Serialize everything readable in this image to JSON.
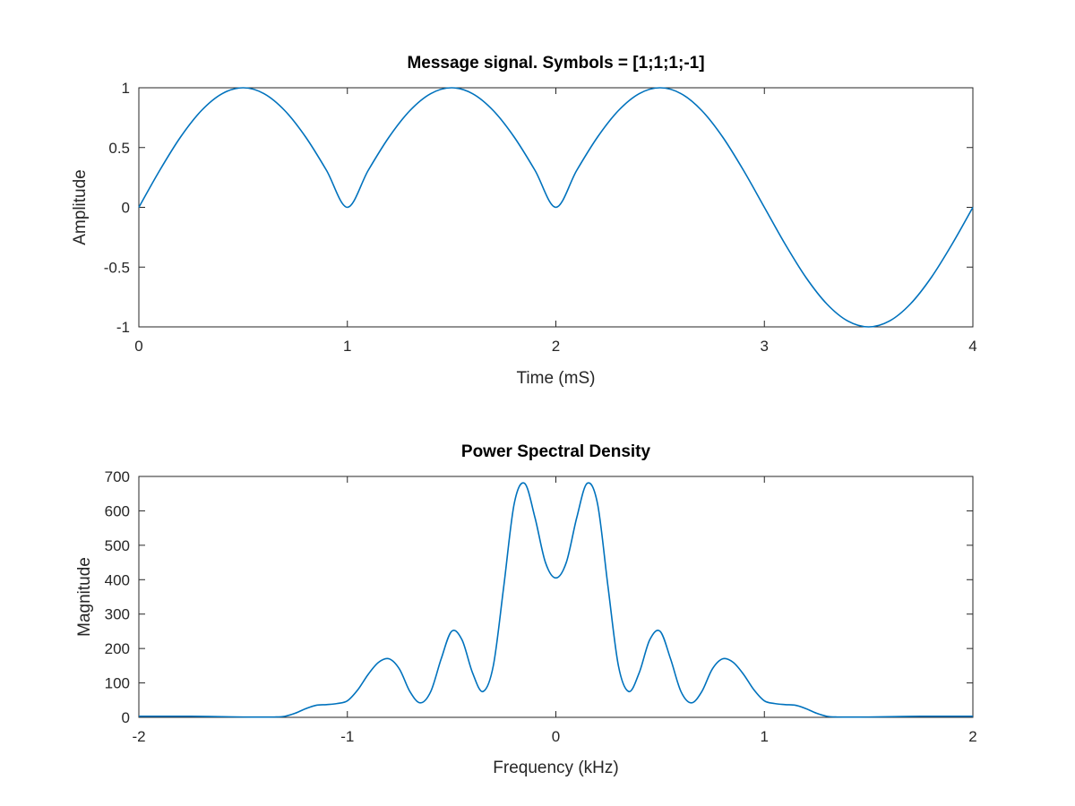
{
  "chart_data": [
    {
      "type": "line",
      "title": "Message signal. Symbols = [1;1;1;-1]",
      "xlabel": "Time (mS)",
      "ylabel": "Amplitude",
      "xlim": [
        0,
        4
      ],
      "ylim": [
        -1,
        1
      ],
      "xticks": [
        0,
        1,
        2,
        3,
        4
      ],
      "xtick_labels": [
        "0",
        "1",
        "2",
        "3",
        "4"
      ],
      "yticks": [
        -1,
        -0.5,
        0,
        0.5,
        1
      ],
      "ytick_labels": [
        "-1",
        "-0.5",
        "0",
        "0.5",
        "1"
      ],
      "grid": false,
      "series_color": "#0072BD",
      "series": [
        {
          "x": [
            0,
            0.1,
            0.2,
            0.3,
            0.4,
            0.5,
            0.6,
            0.7,
            0.8,
            0.9,
            1.0,
            1.1,
            1.2,
            1.3,
            1.4,
            1.5,
            1.6,
            1.7,
            1.8,
            1.9,
            2.0,
            2.1,
            2.2,
            2.3,
            2.4,
            2.5,
            2.6,
            2.7,
            2.8,
            2.9,
            3.0,
            3.1,
            3.2,
            3.3,
            3.4,
            3.5,
            3.6,
            3.7,
            3.8,
            3.9,
            4.0
          ],
          "values": [
            0,
            0.309,
            0.588,
            0.809,
            0.951,
            1.0,
            0.951,
            0.809,
            0.588,
            0.309,
            0,
            0.309,
            0.588,
            0.809,
            0.951,
            1.0,
            0.951,
            0.809,
            0.588,
            0.309,
            0,
            0.309,
            0.588,
            0.809,
            0.951,
            1.0,
            0.951,
            0.809,
            0.588,
            0.309,
            0,
            -0.309,
            -0.588,
            -0.809,
            -0.951,
            -1.0,
            -0.951,
            -0.809,
            -0.588,
            -0.309,
            0
          ]
        }
      ]
    },
    {
      "type": "line",
      "title": "Power Spectral Density",
      "xlabel": "Frequency (kHz)",
      "ylabel": "Magnitude",
      "xlim": [
        -2,
        2
      ],
      "ylim": [
        0,
        700
      ],
      "xticks": [
        -2,
        -1,
        0,
        1,
        2
      ],
      "xtick_labels": [
        "-2",
        "-1",
        "0",
        "1",
        "2"
      ],
      "yticks": [
        0,
        100,
        200,
        300,
        400,
        500,
        600,
        700
      ],
      "ytick_labels": [
        "0",
        "100",
        "200",
        "300",
        "400",
        "500",
        "600",
        "700"
      ],
      "grid": false,
      "series_color": "#0072BD",
      "series": [
        {
          "x": [
            -2.0,
            -1.75,
            -1.5,
            -1.35,
            -1.3,
            -1.25,
            -1.2,
            -1.15,
            -1.1,
            -1.05,
            -1.0,
            -0.95,
            -0.9,
            -0.85,
            -0.8,
            -0.75,
            -0.7,
            -0.65,
            -0.6,
            -0.55,
            -0.5,
            -0.45,
            -0.4,
            -0.35,
            -0.3,
            -0.25,
            -0.2,
            -0.15,
            -0.1,
            -0.05,
            0.0,
            0.05,
            0.1,
            0.15,
            0.2,
            0.25,
            0.3,
            0.35,
            0.4,
            0.45,
            0.5,
            0.55,
            0.6,
            0.65,
            0.7,
            0.75,
            0.8,
            0.85,
            0.9,
            0.95,
            1.0,
            1.05,
            1.1,
            1.15,
            1.2,
            1.25,
            1.3,
            1.35,
            1.5,
            1.75,
            2.0
          ],
          "values": [
            3,
            3,
            1,
            1,
            3,
            12,
            25,
            35,
            37,
            40,
            48,
            80,
            125,
            160,
            170,
            140,
            75,
            42,
            75,
            170,
            250,
            225,
            130,
            75,
            150,
            380,
            620,
            680,
            580,
            450,
            405,
            450,
            580,
            680,
            620,
            380,
            150,
            75,
            130,
            225,
            250,
            170,
            75,
            42,
            75,
            140,
            170,
            160,
            125,
            80,
            48,
            40,
            37,
            35,
            25,
            12,
            3,
            1,
            1,
            3,
            3
          ]
        }
      ]
    }
  ]
}
